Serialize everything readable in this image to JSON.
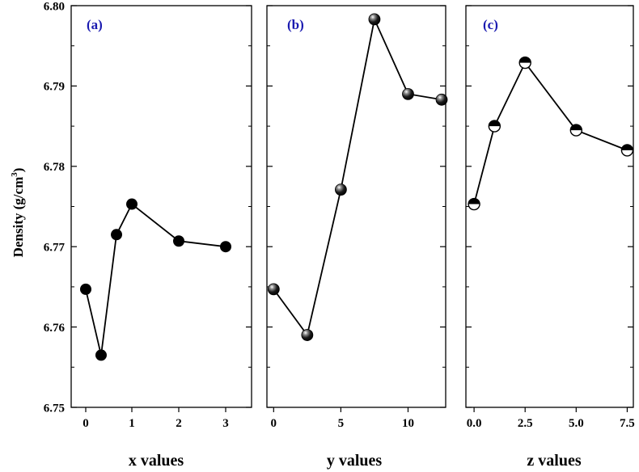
{
  "chart_data": {
    "ylabel": "Density (g/cm",
    "ylabel_sup": "3",
    "ylabel_close": ")",
    "ylim": [
      6.75,
      6.8
    ],
    "yticks": [
      6.75,
      6.76,
      6.77,
      6.78,
      6.79,
      6.8
    ],
    "ytick_labels": [
      "6.75",
      "6.76",
      "6.77",
      "6.78",
      "6.79",
      "6.80"
    ],
    "panels": [
      {
        "type": "line",
        "label": "(a)",
        "xlabel": "x values",
        "x_mode": "categorical",
        "categories": [
          "0",
          "1/3",
          "2/3",
          "1",
          "2",
          "3"
        ],
        "x": [
          0,
          0.333,
          0.667,
          1,
          2,
          3
        ],
        "xticks": [
          0,
          1,
          2,
          3
        ],
        "xtick_labels": [
          "0",
          "1",
          "2",
          "3"
        ],
        "values": [
          6.7647,
          6.7565,
          6.7715,
          6.7753,
          6.7707,
          6.77
        ],
        "marker": "filled-circle",
        "color": "#000000"
      },
      {
        "type": "line",
        "label": "(b)",
        "xlabel": "y values",
        "x_mode": "linear",
        "xlim": [
          -0.5,
          12.8
        ],
        "x": [
          0,
          2.5,
          5,
          7.5,
          10,
          12.5
        ],
        "xticks": [
          0,
          5,
          10
        ],
        "xtick_labels": [
          "0",
          "5",
          "10"
        ],
        "values": [
          6.7647,
          6.759,
          6.7771,
          6.7983,
          6.789,
          6.7883
        ],
        "marker": "sphere",
        "color": "#000000"
      },
      {
        "type": "line",
        "label": "(c)",
        "xlabel": "z values",
        "x_mode": "linear",
        "xlim": [
          -0.4,
          7.8
        ],
        "x": [
          0,
          1,
          2.5,
          5,
          7.5
        ],
        "xticks": [
          0,
          2.5,
          5,
          7.5
        ],
        "xtick_labels": [
          "0.0",
          "2.5",
          "5.0",
          "7.5"
        ],
        "values": [
          6.7753,
          6.785,
          6.7929,
          6.7845,
          6.782
        ],
        "marker": "half-filled-circle",
        "color": "#000000"
      }
    ]
  }
}
